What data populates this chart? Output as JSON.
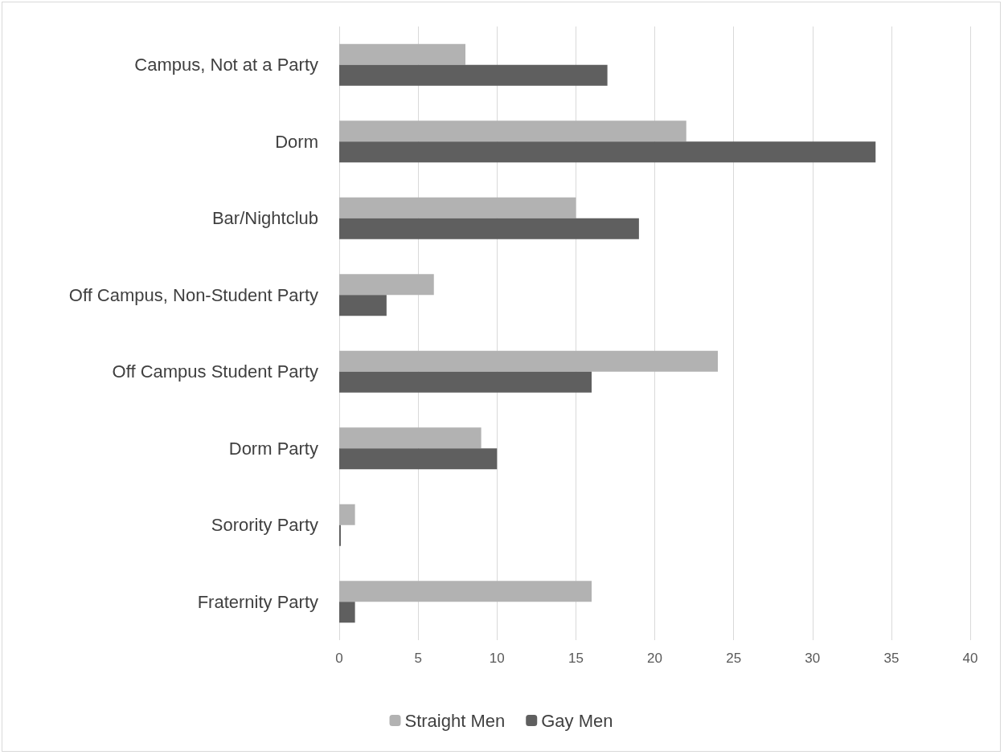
{
  "chart_data": {
    "type": "bar",
    "orientation": "horizontal",
    "categories": [
      "Campus, Not at a Party",
      "Dorm",
      "Bar/Nightclub",
      "Off Campus, Non-Student Party",
      "Off Campus Student Party",
      "Dorm Party",
      "Sorority Party",
      "Fraternity Party"
    ],
    "series": [
      {
        "name": "Straight Men",
        "color": "#b2b2b2",
        "values": [
          8,
          22,
          15,
          6,
          24,
          9,
          1,
          16
        ]
      },
      {
        "name": "Gay Men",
        "color": "#5f5f5f",
        "values": [
          17,
          34,
          19,
          3,
          16,
          10,
          0.1,
          1
        ]
      }
    ],
    "xlim": [
      0,
      40
    ],
    "xticks": [
      0,
      5,
      10,
      15,
      20,
      25,
      30,
      35,
      40
    ],
    "grid": "x",
    "legend": "bottom"
  }
}
